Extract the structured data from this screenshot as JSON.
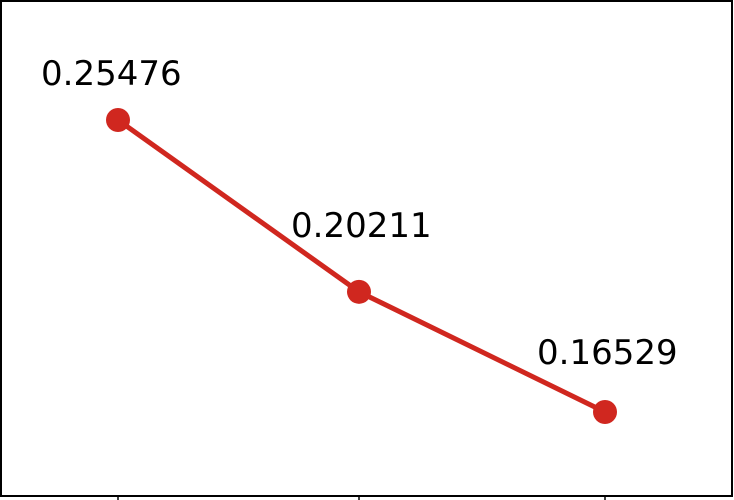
{
  "chart_data": {
    "type": "line",
    "x": [
      1,
      2,
      3
    ],
    "series": [
      {
        "values": [
          0.25476,
          0.20211,
          0.16529
        ],
        "color": "#d0271f"
      }
    ],
    "data_labels": [
      "0.25476",
      "0.20211",
      "0.16529"
    ],
    "ylim": [
      0.145,
      0.28
    ],
    "grid": false
  }
}
